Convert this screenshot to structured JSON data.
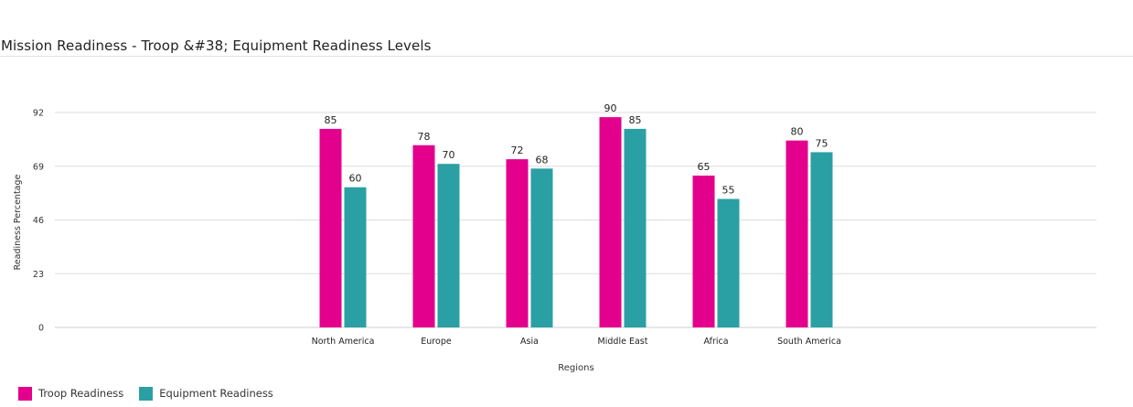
{
  "title": "Mission Readiness - Troop &#38; Equipment Readiness Levels",
  "chart_data": {
    "type": "bar",
    "title": "Mission Readiness - Troop &#38; Equipment Readiness Levels",
    "xlabel": "Regions",
    "ylabel": "Readiness Percentage",
    "categories": [
      "North America",
      "Europe",
      "Asia",
      "Middle East",
      "Africa",
      "South America"
    ],
    "series": [
      {
        "name": "Troop Readiness",
        "values": [
          85,
          78,
          72,
          90,
          65,
          80
        ],
        "color": "#e3008c"
      },
      {
        "name": "Equipment Readiness",
        "values": [
          60,
          70,
          68,
          85,
          55,
          75
        ],
        "color": "#2aa0a4"
      }
    ],
    "y_ticks": [
      0,
      23,
      46,
      69,
      92
    ],
    "ylim": [
      0,
      92
    ],
    "grid": true,
    "legend_position": "bottom-left",
    "data_labels": true
  }
}
